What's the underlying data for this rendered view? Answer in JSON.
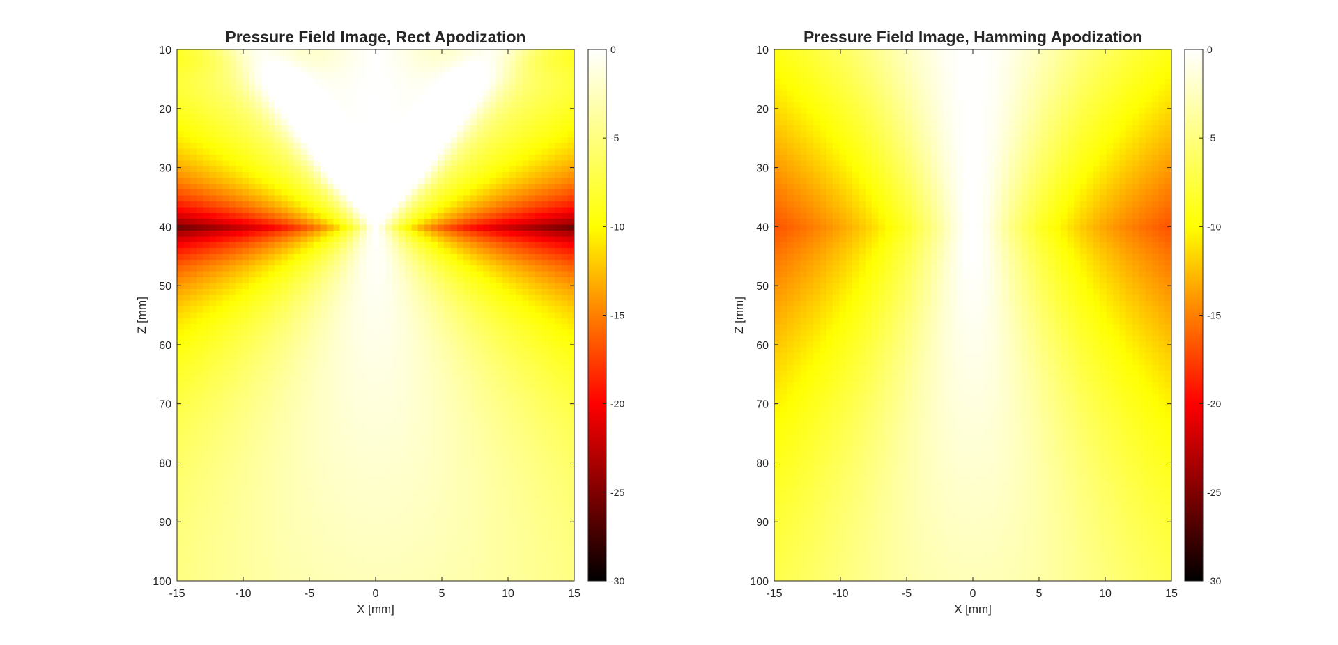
{
  "colormap": {
    "name": "hot",
    "stops": [
      {
        "v": -30,
        "color": "#000000"
      },
      {
        "v": -20,
        "color": "#ff0000"
      },
      {
        "v": -10,
        "color": "#ffff00"
      },
      {
        "v": 0,
        "color": "#ffffff"
      }
    ]
  },
  "chart_data": [
    {
      "type": "heatmap",
      "title": "Pressure Field Image, Rect Apodization",
      "xlabel": "X [mm]",
      "ylabel": "Z [mm]",
      "xlim": [
        -15,
        15
      ],
      "ylim": [
        10,
        100
      ],
      "y_direction": "top-to-bottom",
      "xticks": [
        -15,
        -10,
        -5,
        0,
        5,
        10,
        15
      ],
      "yticks": [
        10,
        20,
        30,
        40,
        50,
        60,
        70,
        80,
        90,
        100
      ],
      "colorbar": {
        "clim": [
          -30,
          0
        ],
        "ticks": [
          0,
          -5,
          -10,
          -15,
          -20,
          -25,
          -30
        ]
      },
      "grid": {
        "nx": 61,
        "nz": 91
      },
      "value_unit": "dB",
      "field": {
        "apodization": "rect",
        "focus_z": 40,
        "peak_db": 0,
        "min_db": -30
      }
    },
    {
      "type": "heatmap",
      "title": "Pressure Field Image, Hamming Apodization",
      "xlabel": "X [mm]",
      "ylabel": "Z [mm]",
      "xlim": [
        -15,
        15
      ],
      "ylim": [
        10,
        100
      ],
      "y_direction": "top-to-bottom",
      "xticks": [
        -15,
        -10,
        -5,
        0,
        5,
        10,
        15
      ],
      "yticks": [
        10,
        20,
        30,
        40,
        50,
        60,
        70,
        80,
        90,
        100
      ],
      "colorbar": {
        "clim": [
          -30,
          0
        ],
        "ticks": [
          0,
          -5,
          -10,
          -15,
          -20,
          -25,
          -30
        ]
      },
      "grid": {
        "nx": 61,
        "nz": 91
      },
      "value_unit": "dB",
      "field": {
        "apodization": "hamming",
        "focus_z": 40,
        "peak_db": 0,
        "min_db": -30
      }
    }
  ]
}
